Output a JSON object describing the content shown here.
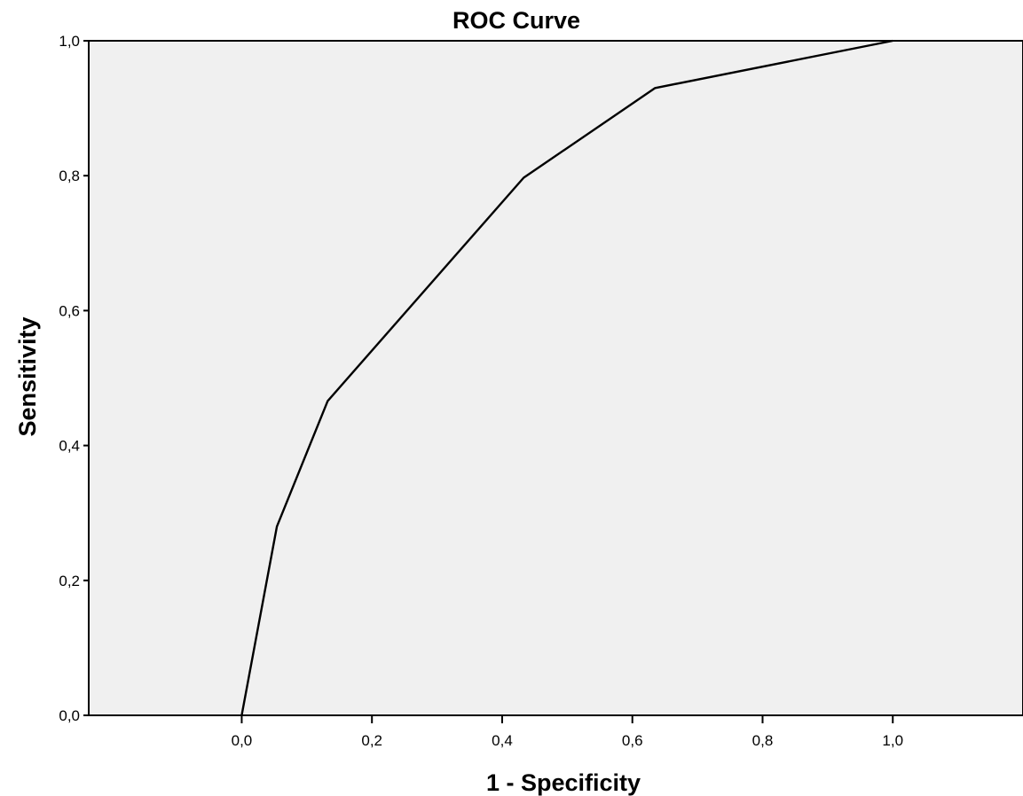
{
  "chart_data": {
    "type": "line",
    "title": "ROC Curve",
    "xlabel": "1 - Specificity",
    "ylabel": "Sensitivity",
    "xlim": [
      -0.235,
      1.2
    ],
    "ylim": [
      0,
      1
    ],
    "x_ticks": [
      0,
      0.2,
      0.4,
      0.6,
      0.8,
      1.0
    ],
    "x_tick_labels": [
      "0,0",
      "0,2",
      "0,4",
      "0,6",
      "0,8",
      "1,0"
    ],
    "y_ticks": [
      0,
      0.2,
      0.4,
      0.6,
      0.8,
      1.0
    ],
    "y_tick_labels": [
      "0,0",
      "0,2",
      "0,4",
      "0,6",
      "0,8",
      "1,0"
    ],
    "grid": false,
    "legend": "none",
    "plot_background": "#f0f0f0",
    "line_color": "#000000",
    "series": [
      {
        "x": [
          0,
          0.054,
          0.132,
          0.433,
          0.635,
          1.0
        ],
        "y": [
          0,
          0.28,
          0.466,
          0.797,
          0.93,
          1.0
        ]
      }
    ]
  }
}
